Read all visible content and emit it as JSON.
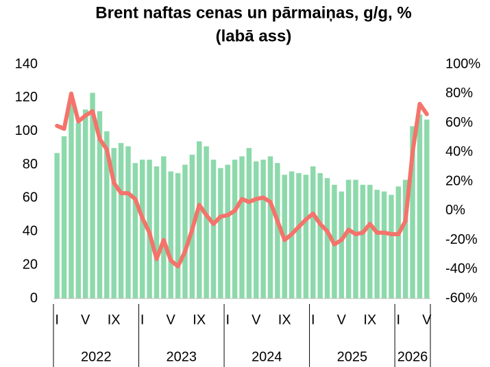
{
  "chart_data": {
    "type": "combo",
    "title": "Brent naftas cenas un pārmaiņas, g/g, %",
    "subtitle": "(labā ass)",
    "categories": [
      "I",
      null,
      null,
      null,
      "V",
      null,
      null,
      null,
      "IX",
      null,
      null,
      null,
      "I",
      null,
      null,
      null,
      "V",
      null,
      null,
      null,
      "IX",
      null,
      null,
      null,
      "I",
      null,
      null,
      null,
      "V",
      null,
      null,
      null,
      "IX",
      null,
      null,
      null,
      "I",
      null,
      null,
      null,
      "V",
      null,
      null,
      null,
      "IX",
      null,
      null,
      null,
      "I",
      null,
      null,
      null,
      "V"
    ],
    "groups": [
      "2022",
      "2023",
      "2024",
      "2025",
      "2026"
    ],
    "series": [
      {
        "type": "bar",
        "color": "#8dd9ab",
        "values": [
          87,
          97,
          117,
          105,
          113,
          123,
          112,
          100,
          90,
          93,
          91,
          81,
          83,
          83,
          79,
          85,
          76,
          75,
          80,
          86,
          94,
          91,
          83,
          78,
          80,
          83,
          85,
          90,
          82,
          83,
          85,
          81,
          74,
          76,
          75,
          74,
          79,
          75,
          72,
          68,
          64,
          71,
          71,
          68,
          68,
          65,
          64,
          62,
          67,
          71,
          103,
          110,
          107
        ]
      },
      {
        "type": "line",
        "axis": "y2",
        "color": "#f4736b",
        "values": [
          58,
          56,
          80,
          61,
          65,
          68,
          49,
          42,
          19,
          12,
          12,
          8,
          -5,
          -15,
          -33,
          -20,
          -34,
          -38,
          -28,
          -13,
          4,
          -3,
          -9,
          -4,
          -3,
          0,
          8,
          6,
          8,
          9,
          6,
          -7,
          -20,
          -16,
          -11,
          -6,
          -2,
          -9,
          -14,
          -23,
          -20,
          -13,
          -16,
          -15,
          -9,
          -15,
          -15,
          -16,
          -16,
          -7,
          40,
          73,
          66
        ]
      }
    ],
    "ylim": [
      0,
      140
    ],
    "yticks": [
      0,
      20,
      40,
      60,
      80,
      100,
      120,
      140
    ],
    "y2lim": [
      -60,
      100
    ],
    "y2ticks": [
      {
        "value": -60,
        "label": "-60%"
      },
      {
        "value": -40,
        "label": "-40%"
      },
      {
        "value": -20,
        "label": "-20%"
      },
      {
        "value": 0,
        "label": "0%"
      },
      {
        "value": 20,
        "label": "20%"
      },
      {
        "value": 40,
        "label": "40%"
      },
      {
        "value": 60,
        "label": "60%"
      },
      {
        "value": 80,
        "label": "80%"
      },
      {
        "value": 100,
        "label": "100%"
      }
    ]
  }
}
